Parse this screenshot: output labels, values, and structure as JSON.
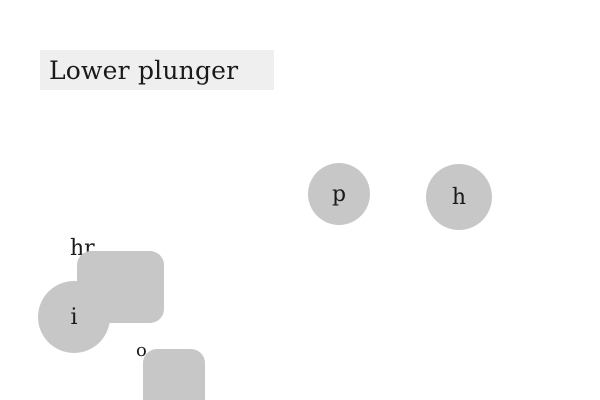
{
  "header": {
    "title": "Lower plunger"
  },
  "buttons": {
    "p_label": "p",
    "h_label": "h",
    "i_label": "i"
  },
  "labels": {
    "hr": "hr",
    "o": "o"
  },
  "colors": {
    "background": "#ffffff",
    "title_bg": "#efefef",
    "control_fill": "#c7c7c7",
    "text": "#1a1a1a"
  }
}
